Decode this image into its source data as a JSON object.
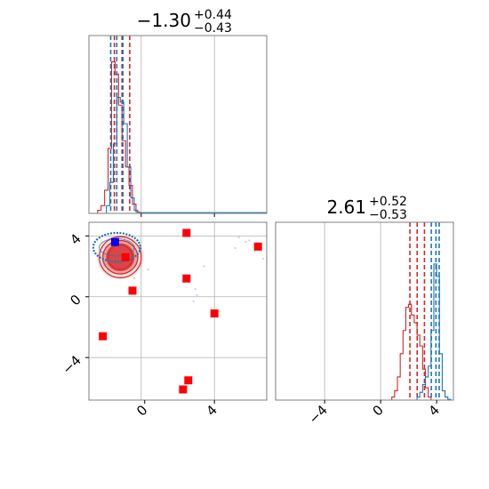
{
  "colors": {
    "red": "#d62728",
    "blue": "#1f77b4",
    "pure_blue": "#0000ff",
    "pure_red": "#ff0000",
    "frame": "#7f7f7f",
    "grid": "#b0b0b0"
  },
  "chart_data": [
    {
      "type": "histogram",
      "panel": "top-left",
      "title": {
        "value": "−1.30",
        "plus": "+0.44",
        "minus": "−0.43"
      },
      "xlim": [
        -3.2,
        7.0
      ],
      "ylim": [
        0,
        1.15
      ],
      "xgrid": [
        -0.2,
        4.0
      ],
      "series": [
        {
          "name": "",
          "color": "#d62728",
          "bins": [
            -2.7,
            -2.5,
            -2.3,
            -2.1,
            -1.9,
            -1.7,
            -1.5,
            -1.3,
            -1.1,
            -0.9,
            -0.7,
            -0.5,
            -0.3
          ],
          "counts": [
            0.02,
            0.05,
            0.15,
            0.42,
            0.98,
            0.9,
            0.7,
            0.47,
            0.3,
            0.18,
            0.06,
            0.01
          ],
          "quantiles": [
            -1.74,
            -1.3,
            -0.86
          ]
        },
        {
          "name": "",
          "color": "#1f77b4",
          "bins": [
            -2.2,
            -2.0,
            -1.8,
            -1.6,
            -1.4,
            -1.2,
            -1.0,
            -0.8,
            -0.6,
            -0.4
          ],
          "counts": [
            0.05,
            0.2,
            0.45,
            0.75,
            0.72,
            0.58,
            0.3,
            0.1,
            0.02
          ],
          "quantiles": [
            -1.95,
            -1.6,
            -1.25
          ]
        }
      ],
      "tail": {
        "x": [
          -0.3,
          7.0
        ],
        "y": 0.005
      }
    },
    {
      "type": "scatter",
      "panel": "bottom-left",
      "xlim": [
        -3.2,
        7.0
      ],
      "ylim": [
        -6.8,
        4.9
      ],
      "xticks": [
        0,
        4
      ],
      "yticks": [
        -4,
        0,
        4
      ],
      "xgrid": [
        -0.2,
        4.0
      ],
      "ygrid": [
        4.0,
        0.0,
        -4.0
      ],
      "red_markers": [
        {
          "x": 2.4,
          "y": 4.2
        },
        {
          "x": 6.5,
          "y": 3.3
        },
        {
          "x": 2.4,
          "y": 1.2
        },
        {
          "x": -0.7,
          "y": 0.4
        },
        {
          "x": 4.0,
          "y": -1.1
        },
        {
          "x": -2.4,
          "y": -2.6
        },
        {
          "x": 2.5,
          "y": -5.5
        },
        {
          "x": 2.2,
          "y": -6.1
        },
        {
          "x": -1.1,
          "y": 2.6
        }
      ],
      "blue_marker": {
        "x": -1.7,
        "y": 3.6
      },
      "red_contours": {
        "center": {
          "x": -1.4,
          "y": 2.6
        },
        "levels": [
          {
            "rx": 1.2,
            "ry": 1.35
          },
          {
            "rx": 1.0,
            "ry": 1.1
          },
          {
            "rx": 0.7,
            "ry": 0.8
          }
        ],
        "fill": [
          {
            "rx": 1.35,
            "ry": 1.45,
            "alpha": 0.15
          },
          {
            "rx": 1.05,
            "ry": 1.12,
            "alpha": 0.35
          },
          {
            "rx": 0.82,
            "ry": 0.92,
            "alpha": 0.75
          }
        ]
      },
      "blue_contour": {
        "center": {
          "x": -1.6,
          "y": 3.25
        },
        "rx": 1.35,
        "ry": 0.95
      },
      "faint_points": [
        {
          "x": 5.4,
          "y": 3.9
        },
        {
          "x": 5.8,
          "y": 3.6
        },
        {
          "x": 6.0,
          "y": 3.7
        },
        {
          "x": 6.8,
          "y": 2.5
        },
        {
          "x": 5.2,
          "y": 3.2
        },
        {
          "x": 2.9,
          "y": 0.5
        },
        {
          "x": 3.0,
          "y": 0.1
        },
        {
          "x": 2.8,
          "y": -0.3
        },
        {
          "x": 3.4,
          "y": 2.0
        },
        {
          "x": 0.2,
          "y": 1.8
        },
        {
          "x": -0.6,
          "y": 1.2
        },
        {
          "x": 6.3,
          "y": 3.0
        }
      ]
    },
    {
      "type": "histogram",
      "panel": "bottom-right",
      "title": {
        "value": "2.61",
        "plus": "+0.52",
        "minus": "−0.53"
      },
      "xlim": [
        -7.5,
        5.2
      ],
      "ylim": [
        0,
        1.15
      ],
      "xticks": [
        -4,
        0,
        4
      ],
      "xgrid": [
        -4.0,
        0.0
      ],
      "series": [
        {
          "name": "",
          "color": "#d62728",
          "bins": [
            0.8,
            1.0,
            1.2,
            1.4,
            1.6,
            1.8,
            2.0,
            2.2,
            2.4,
            2.6,
            2.8,
            3.0,
            3.2,
            3.4,
            3.6
          ],
          "counts": [
            0.02,
            0.06,
            0.15,
            0.3,
            0.45,
            0.6,
            0.62,
            0.55,
            0.5,
            0.42,
            0.35,
            0.2,
            0.08,
            0.02
          ],
          "quantiles": [
            2.09,
            2.61,
            3.13
          ]
        },
        {
          "name": "",
          "color": "#1f77b4",
          "bins": [
            2.6,
            2.8,
            3.0,
            3.2,
            3.4,
            3.6,
            3.8,
            4.0,
            4.2,
            4.4,
            4.6,
            4.8,
            5.0
          ],
          "counts": [
            0.02,
            0.05,
            0.1,
            0.15,
            0.22,
            0.45,
            0.88,
            0.8,
            0.3,
            0.06,
            0.02,
            0.005
          ],
          "quantiles": [
            3.62,
            3.95,
            4.18
          ]
        }
      ]
    }
  ]
}
